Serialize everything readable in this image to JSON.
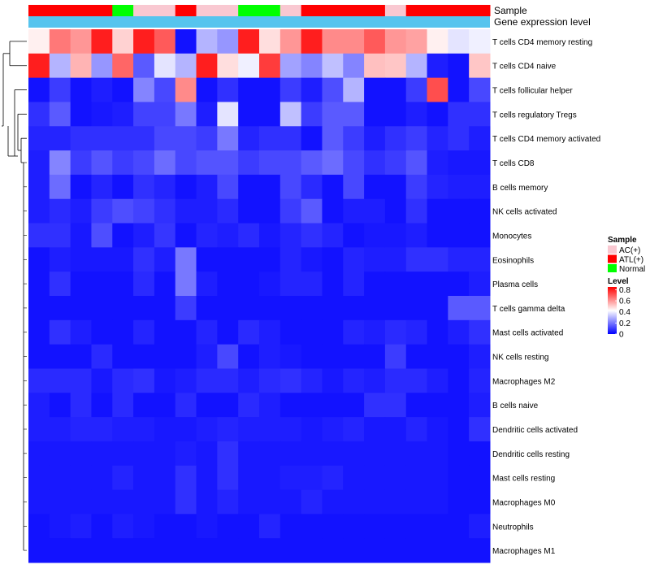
{
  "chart_data": {
    "type": "heatmap",
    "annotation_labels": [
      "Sample",
      "Gene expression level"
    ],
    "sample_groups": [
      "ATL(+)",
      "ATL(+)",
      "ATL(+)",
      "ATL(+)",
      "Normal",
      "AC(+)",
      "AC(+)",
      "ATL(+)",
      "AC(+)",
      "AC(+)",
      "Normal",
      "Normal",
      "AC(+)",
      "ATL(+)",
      "ATL(+)",
      "ATL(+)",
      "ATL(+)",
      "AC(+)",
      "ATL(+)",
      "ATL(+)",
      "ATL(+)",
      "ATL(+)"
    ],
    "legend": {
      "sample_title": "Sample",
      "sample_entries": [
        {
          "label": "AC(+)",
          "color": "#f9c8d1"
        },
        {
          "label": "ATL(+)",
          "color": "#ff0000"
        },
        {
          "label": "Normal",
          "color": "#00ff00"
        }
      ],
      "level_title": "Level",
      "level_ticks": [
        "0.8",
        "0.6",
        "0.4",
        "0.2",
        "0"
      ],
      "level_tick_values": [
        0.8,
        0.6,
        0.4,
        0.2,
        0
      ],
      "range": [
        0,
        0.85
      ]
    },
    "colors": {
      "low": "#0000ff",
      "mid": "#ffffff",
      "high": "#ff0000",
      "gene_bar": "#56c4ee",
      "dendrogram": "#000000"
    },
    "rows": [
      "T cells CD4 memory resting",
      "T cells CD4 naive",
      "T cells follicular helper",
      "T cells regulatory  Tregs",
      "T cells CD4 memory activated",
      "T cells CD8",
      "B cells memory",
      "NK cells activated",
      "Monocytes",
      "Eosinophils",
      "Plasma cells",
      "T cells gamma delta",
      "Mast cells activated",
      "NK cells resting",
      "Macrophages M2",
      "B cells naive",
      "Dendritic cells activated",
      "Dendritic cells resting",
      "Mast cells resting",
      "Macrophages M0",
      "Neutrophils",
      "Macrophages M1"
    ],
    "values": [
      [
        0.45,
        0.65,
        0.6,
        0.8,
        0.5,
        0.8,
        0.7,
        0.03,
        0.3,
        0.25,
        0.8,
        0.48,
        0.6,
        0.8,
        0.62,
        0.62,
        0.7,
        0.6,
        0.58,
        0.45,
        0.38,
        0.4
      ],
      [
        0.8,
        0.3,
        0.55,
        0.25,
        0.68,
        0.15,
        0.38,
        0.3,
        0.8,
        0.48,
        0.4,
        0.75,
        0.27,
        0.22,
        0.32,
        0.22,
        0.53,
        0.52,
        0.3,
        0.05,
        0.03,
        0.52
      ],
      [
        0.03,
        0.1,
        0.03,
        0.05,
        0.03,
        0.22,
        0.12,
        0.62,
        0.03,
        0.08,
        0.03,
        0.03,
        0.1,
        0.05,
        0.13,
        0.3,
        0.03,
        0.03,
        0.1,
        0.72,
        0.03,
        0.12
      ],
      [
        0.08,
        0.15,
        0.03,
        0.04,
        0.05,
        0.11,
        0.11,
        0.2,
        0.05,
        0.38,
        0.03,
        0.03,
        0.32,
        0.1,
        0.15,
        0.15,
        0.03,
        0.03,
        0.05,
        0.03,
        0.08,
        0.08
      ],
      [
        0.06,
        0.06,
        0.08,
        0.08,
        0.08,
        0.08,
        0.12,
        0.12,
        0.1,
        0.2,
        0.06,
        0.08,
        0.08,
        0.03,
        0.15,
        0.1,
        0.05,
        0.08,
        0.1,
        0.06,
        0.08,
        0.05
      ],
      [
        0.05,
        0.22,
        0.1,
        0.14,
        0.1,
        0.12,
        0.18,
        0.12,
        0.14,
        0.14,
        0.1,
        0.12,
        0.12,
        0.15,
        0.18,
        0.12,
        0.08,
        0.1,
        0.14,
        0.05,
        0.04,
        0.04
      ],
      [
        0.05,
        0.18,
        0.03,
        0.06,
        0.03,
        0.08,
        0.06,
        0.03,
        0.05,
        0.12,
        0.03,
        0.03,
        0.12,
        0.07,
        0.03,
        0.12,
        0.03,
        0.03,
        0.1,
        0.06,
        0.05,
        0.05
      ],
      [
        0.05,
        0.07,
        0.05,
        0.1,
        0.13,
        0.11,
        0.08,
        0.05,
        0.05,
        0.07,
        0.03,
        0.03,
        0.1,
        0.15,
        0.03,
        0.05,
        0.05,
        0.03,
        0.08,
        0.03,
        0.03,
        0.03
      ],
      [
        0.08,
        0.08,
        0.04,
        0.13,
        0.03,
        0.05,
        0.09,
        0.03,
        0.06,
        0.05,
        0.07,
        0.04,
        0.06,
        0.08,
        0.06,
        0.03,
        0.04,
        0.04,
        0.05,
        0.03,
        0.03,
        0.03
      ],
      [
        0.03,
        0.05,
        0.04,
        0.04,
        0.04,
        0.08,
        0.05,
        0.2,
        0.03,
        0.03,
        0.03,
        0.03,
        0.06,
        0.04,
        0.03,
        0.06,
        0.05,
        0.05,
        0.08,
        0.08,
        0.06,
        0.06
      ],
      [
        0.03,
        0.08,
        0.03,
        0.03,
        0.03,
        0.07,
        0.03,
        0.2,
        0.05,
        0.03,
        0.03,
        0.04,
        0.06,
        0.06,
        0.03,
        0.06,
        0.03,
        0.03,
        0.03,
        0.03,
        0.03,
        0.05
      ],
      [
        0.03,
        0.03,
        0.03,
        0.03,
        0.03,
        0.03,
        0.03,
        0.1,
        0.03,
        0.03,
        0.03,
        0.03,
        0.03,
        0.03,
        0.03,
        0.03,
        0.03,
        0.03,
        0.03,
        0.03,
        0.15,
        0.15
      ],
      [
        0.03,
        0.08,
        0.05,
        0.03,
        0.03,
        0.06,
        0.03,
        0.03,
        0.06,
        0.03,
        0.07,
        0.05,
        0.03,
        0.03,
        0.03,
        0.06,
        0.05,
        0.07,
        0.06,
        0.03,
        0.05,
        0.08
      ],
      [
        0.03,
        0.03,
        0.03,
        0.07,
        0.03,
        0.03,
        0.03,
        0.03,
        0.05,
        0.12,
        0.03,
        0.05,
        0.04,
        0.03,
        0.03,
        0.03,
        0.03,
        0.1,
        0.03,
        0.03,
        0.03,
        0.05
      ],
      [
        0.07,
        0.07,
        0.07,
        0.04,
        0.07,
        0.08,
        0.04,
        0.05,
        0.07,
        0.07,
        0.05,
        0.07,
        0.08,
        0.06,
        0.04,
        0.06,
        0.05,
        0.07,
        0.07,
        0.05,
        0.03,
        0.06
      ],
      [
        0.05,
        0.03,
        0.07,
        0.03,
        0.07,
        0.03,
        0.03,
        0.07,
        0.03,
        0.03,
        0.07,
        0.05,
        0.03,
        0.03,
        0.03,
        0.03,
        0.08,
        0.08,
        0.03,
        0.03,
        0.03,
        0.05
      ],
      [
        0.05,
        0.05,
        0.06,
        0.06,
        0.05,
        0.05,
        0.04,
        0.04,
        0.05,
        0.06,
        0.05,
        0.05,
        0.05,
        0.04,
        0.05,
        0.06,
        0.04,
        0.04,
        0.06,
        0.04,
        0.03,
        0.08
      ],
      [
        0.04,
        0.04,
        0.04,
        0.04,
        0.04,
        0.04,
        0.04,
        0.05,
        0.04,
        0.08,
        0.04,
        0.04,
        0.04,
        0.04,
        0.04,
        0.04,
        0.04,
        0.04,
        0.04,
        0.04,
        0.03,
        0.03
      ],
      [
        0.04,
        0.04,
        0.04,
        0.04,
        0.06,
        0.04,
        0.04,
        0.08,
        0.04,
        0.08,
        0.04,
        0.04,
        0.05,
        0.05,
        0.06,
        0.04,
        0.04,
        0.04,
        0.04,
        0.04,
        0.03,
        0.03
      ],
      [
        0.04,
        0.04,
        0.04,
        0.04,
        0.04,
        0.04,
        0.04,
        0.08,
        0.04,
        0.06,
        0.04,
        0.04,
        0.04,
        0.06,
        0.04,
        0.04,
        0.04,
        0.04,
        0.04,
        0.04,
        0.03,
        0.03
      ],
      [
        0.03,
        0.04,
        0.05,
        0.03,
        0.05,
        0.04,
        0.03,
        0.03,
        0.04,
        0.03,
        0.03,
        0.06,
        0.03,
        0.03,
        0.03,
        0.03,
        0.03,
        0.03,
        0.03,
        0.03,
        0.03,
        0.05
      ],
      [
        0.03,
        0.03,
        0.03,
        0.03,
        0.03,
        0.03,
        0.03,
        0.03,
        0.03,
        0.03,
        0.03,
        0.03,
        0.03,
        0.03,
        0.03,
        0.03,
        0.03,
        0.03,
        0.03,
        0.03,
        0.03,
        0.03
      ]
    ]
  }
}
